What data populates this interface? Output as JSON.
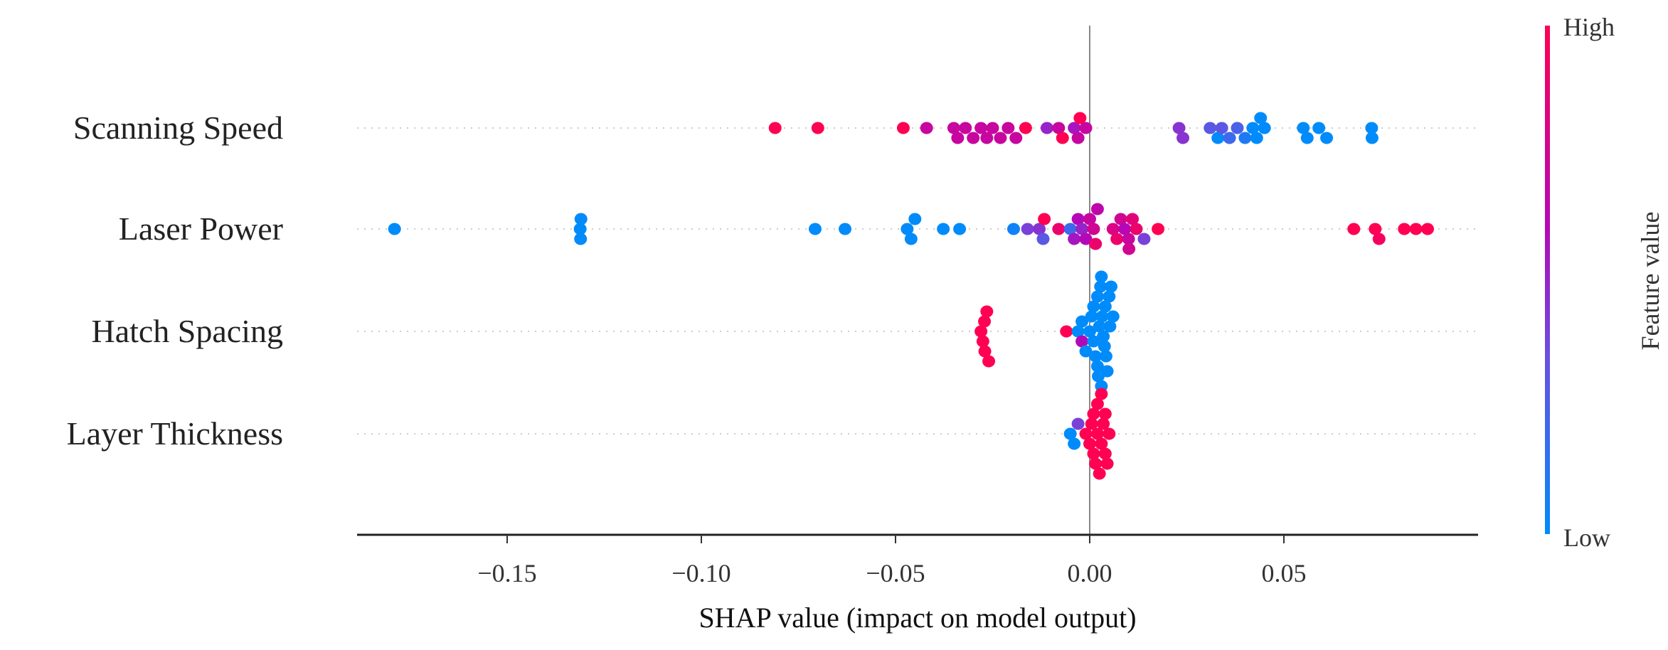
{
  "chart_data": {
    "type": "scatter",
    "subtype": "shap-beeswarm",
    "xlabel": "SHAP value (impact on model output)",
    "ylabel": "",
    "xlim": [
      -0.19,
      0.099
    ],
    "xticks": [
      -0.15,
      -0.1,
      -0.05,
      0.0,
      0.05
    ],
    "xtick_labels": [
      "−0.15",
      "−0.10",
      "−0.05",
      "0.00",
      "0.05"
    ],
    "colorbar": {
      "label": "Feature value",
      "high_label": "High",
      "low_label": "Low",
      "low_color": "#008bfb",
      "high_color": "#ff0052"
    },
    "features": [
      {
        "name": "Scanning Speed",
        "points": [
          [
            -0.081,
            1
          ],
          [
            -0.07,
            1
          ],
          [
            -0.048,
            1
          ],
          [
            -0.0165,
            1
          ],
          [
            -0.007,
            1
          ],
          [
            -0.0025,
            1
          ],
          [
            -0.042,
            0.7
          ],
          [
            -0.035,
            0.7
          ],
          [
            -0.034,
            0.7
          ],
          [
            -0.032,
            0.7
          ],
          [
            -0.03,
            0.7
          ],
          [
            -0.028,
            0.7
          ],
          [
            -0.0265,
            0.7
          ],
          [
            -0.025,
            0.7
          ],
          [
            -0.023,
            0.7
          ],
          [
            -0.021,
            0.7
          ],
          [
            -0.019,
            0.7
          ],
          [
            -0.011,
            0.5
          ],
          [
            -0.008,
            0.7
          ],
          [
            -0.004,
            0.55
          ],
          [
            -0.003,
            0.7
          ],
          [
            -0.001,
            0.7
          ],
          [
            0.023,
            0.45
          ],
          [
            0.024,
            0.45
          ],
          [
            0.031,
            0.3
          ],
          [
            0.033,
            0
          ],
          [
            0.034,
            0.3
          ],
          [
            0.036,
            0.2
          ],
          [
            0.038,
            0.25
          ],
          [
            0.04,
            0.1
          ],
          [
            0.042,
            0
          ],
          [
            0.043,
            0
          ],
          [
            0.044,
            0
          ],
          [
            0.045,
            0
          ],
          [
            0.055,
            0
          ],
          [
            0.056,
            0
          ],
          [
            0.059,
            0
          ],
          [
            0.061,
            0
          ],
          [
            0.0726,
            0
          ],
          [
            0.0727,
            0
          ]
        ]
      },
      {
        "name": "Laser Power",
        "points": [
          [
            -0.179,
            0
          ],
          [
            -0.131,
            0
          ],
          [
            -0.1311,
            0
          ],
          [
            -0.1312,
            0
          ],
          [
            -0.0707,
            0
          ],
          [
            -0.063,
            0
          ],
          [
            -0.047,
            0
          ],
          [
            -0.046,
            0
          ],
          [
            -0.045,
            0
          ],
          [
            -0.0377,
            0
          ],
          [
            -0.0335,
            0
          ],
          [
            -0.0196,
            0.05
          ],
          [
            -0.016,
            0.4
          ],
          [
            -0.013,
            0.45
          ],
          [
            -0.0117,
            1
          ],
          [
            -0.012,
            0.3
          ],
          [
            -0.005,
            0.2
          ],
          [
            -0.008,
            0.9
          ],
          [
            -0.003,
            0.6
          ],
          [
            -0.002,
            0.5
          ],
          [
            -0.001,
            0.6
          ],
          [
            0.0,
            0.7
          ],
          [
            -0.004,
            0.55
          ],
          [
            0.001,
            0.75
          ],
          [
            0.0015,
            0.9
          ],
          [
            0.002,
            0.65
          ],
          [
            0.006,
            0.8
          ],
          [
            0.007,
            0.9
          ],
          [
            0.008,
            0.75
          ],
          [
            0.009,
            0.6
          ],
          [
            0.01,
            0.7
          ],
          [
            0.0101,
            0.75
          ],
          [
            0.011,
            0.85
          ],
          [
            0.012,
            0.9
          ],
          [
            0.014,
            0.4
          ],
          [
            0.0176,
            1
          ],
          [
            0.068,
            1
          ],
          [
            0.0735,
            1
          ],
          [
            0.0745,
            0.95
          ],
          [
            0.081,
            1
          ],
          [
            0.084,
            1
          ],
          [
            0.087,
            1
          ]
        ]
      },
      {
        "name": "Hatch Spacing",
        "points": [
          [
            -0.028,
            1
          ],
          [
            -0.027,
            1
          ],
          [
            -0.0271,
            1
          ],
          [
            -0.026,
            1
          ],
          [
            -0.0265,
            1
          ],
          [
            -0.0275,
            1
          ],
          [
            -0.006,
            1
          ],
          [
            -0.002,
            0.6
          ],
          [
            -0.003,
            0
          ],
          [
            -0.002,
            0
          ],
          [
            -0.001,
            0
          ],
          [
            0.0,
            0
          ],
          [
            0.0005,
            0
          ],
          [
            0.001,
            0
          ],
          [
            0.0015,
            0
          ],
          [
            0.002,
            0
          ],
          [
            0.0022,
            0
          ],
          [
            0.0025,
            0
          ],
          [
            0.003,
            0
          ],
          [
            0.0032,
            0
          ],
          [
            0.0035,
            0
          ],
          [
            0.004,
            0
          ],
          [
            0.0042,
            0
          ],
          [
            0.0045,
            0
          ],
          [
            0.005,
            0
          ],
          [
            0.0052,
            0
          ],
          [
            0.0055,
            0
          ],
          [
            0.006,
            0
          ],
          [
            0.001,
            0
          ],
          [
            0.002,
            0
          ],
          [
            0.003,
            0
          ],
          [
            0.0028,
            0
          ],
          [
            0.0038,
            0
          ]
        ]
      },
      {
        "name": "Layer Thickness",
        "points": [
          [
            -0.005,
            0
          ],
          [
            -0.004,
            0
          ],
          [
            -0.003,
            0.4
          ],
          [
            0.0,
            1
          ],
          [
            0.0005,
            1
          ],
          [
            0.001,
            1
          ],
          [
            0.0015,
            1
          ],
          [
            0.002,
            1
          ],
          [
            0.0025,
            1
          ],
          [
            0.003,
            1
          ],
          [
            0.0035,
            1
          ],
          [
            0.004,
            1
          ],
          [
            0.0045,
            1
          ],
          [
            0.005,
            1
          ],
          [
            0.001,
            1
          ],
          [
            0.002,
            1
          ],
          [
            0.003,
            1
          ],
          [
            0.004,
            1
          ],
          [
            -0.001,
            1
          ]
        ]
      }
    ]
  }
}
